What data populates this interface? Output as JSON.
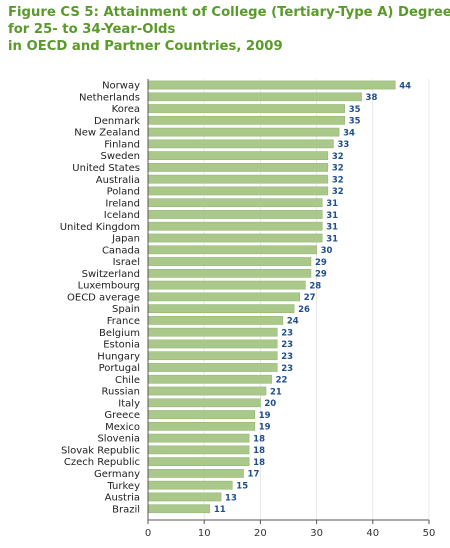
{
  "title_lines": [
    "Figure CS 5: Attainment of College (Tertiary-Type A) Degrees",
    "for 25- to 34-Year-Olds",
    "in OECD and Partner Countries, 2009"
  ],
  "colors": {
    "title": "#5a9a2a",
    "bar": "#a9c88a",
    "bar_edge": "#8eb36c",
    "value_label": "#1f4e8c",
    "axis": "#555555",
    "grid": "#e2e2e2"
  },
  "chart_data": {
    "type": "bar",
    "orientation": "horizontal",
    "title": "Figure CS 5: Attainment of College (Tertiary-Type A) Degrees for 25- to 34-Year-Olds in OECD and Partner Countries, 2009",
    "categories": [
      "Norway",
      "Netherlands",
      "Korea",
      "Denmark",
      "New Zealand",
      "Finland",
      "Sweden",
      "United States",
      "Australia",
      "Poland",
      "Ireland",
      "Iceland",
      "United Kingdom",
      "Japan",
      "Canada",
      "Israel",
      "Switzerland",
      "Luxembourg",
      "OECD average",
      "Spain",
      "France",
      "Belgium",
      "Estonia",
      "Hungary",
      "Portugal",
      "Chile",
      "Russian",
      "Italy",
      "Greece",
      "Mexico",
      "Slovenia",
      "Slovak Republic",
      "Czech Republic",
      "Germany",
      "Turkey",
      "Austria",
      "Brazil"
    ],
    "values": [
      44,
      38,
      35,
      35,
      34,
      33,
      32,
      32,
      32,
      32,
      31,
      31,
      31,
      31,
      30,
      29,
      29,
      28,
      27,
      26,
      24,
      23,
      23,
      23,
      23,
      22,
      21,
      20,
      19,
      19,
      18,
      18,
      18,
      17,
      15,
      13,
      11
    ],
    "xlim": [
      0,
      50
    ],
    "xticks": [
      0,
      10,
      20,
      30,
      40,
      50
    ],
    "xlabel": "",
    "ylabel": "",
    "data_labels": true,
    "legend": "none"
  }
}
